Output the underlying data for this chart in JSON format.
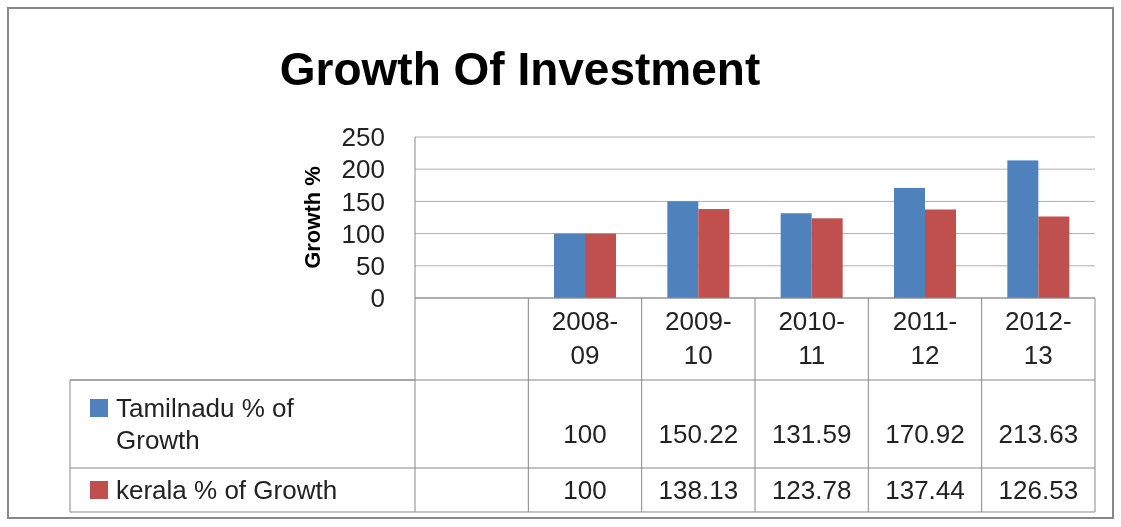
{
  "chart_data": {
    "type": "bar",
    "title": "Growth Of Investment",
    "ylabel": "Growth %",
    "categories": [
      null,
      "2008-09",
      "2009-10",
      "2010-11",
      "2011-12",
      "2012-13"
    ],
    "series": [
      {
        "name": "Tamilnadu % of Growth",
        "color": "#4f81bd",
        "values": [
          null,
          100,
          150.22,
          131.59,
          170.92,
          213.63
        ]
      },
      {
        "name": "kerala % of Growth",
        "color": "#c0504d",
        "values": [
          null,
          100,
          138.13,
          123.78,
          137.44,
          126.53
        ]
      }
    ],
    "ylim": [
      0,
      250
    ],
    "yticks": [
      0,
      50,
      100,
      150,
      200,
      250
    ],
    "grid": "y",
    "legend": "bottom",
    "data_labels": true
  }
}
